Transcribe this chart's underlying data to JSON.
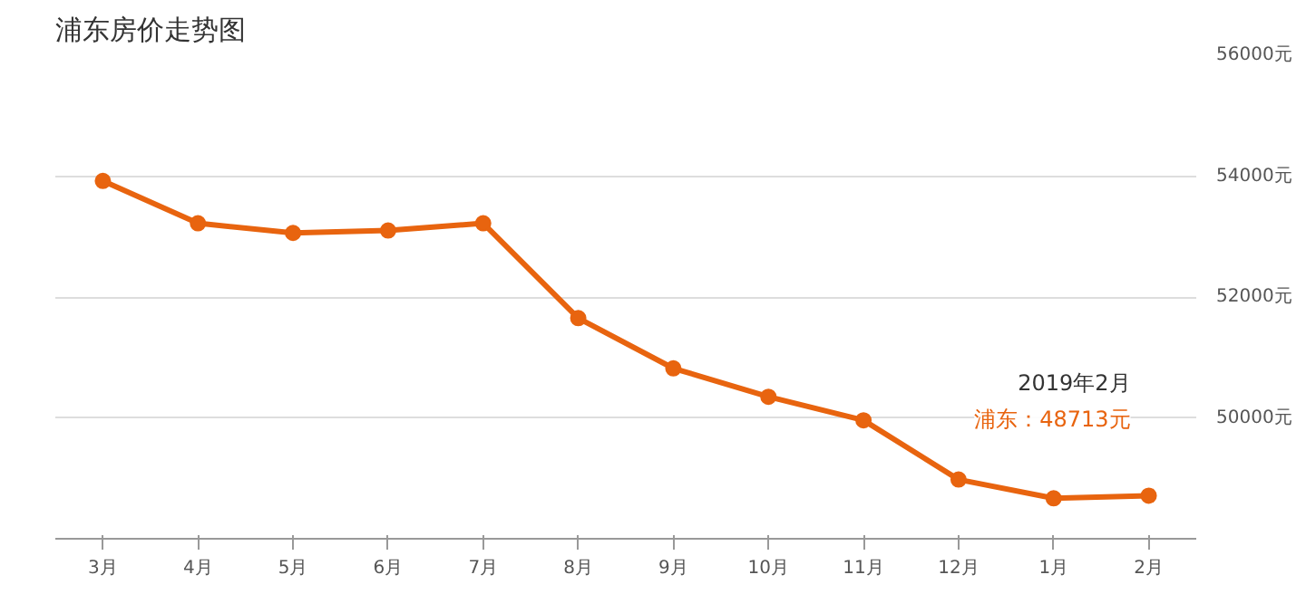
{
  "chart_data": {
    "type": "line",
    "title": "浦东房价走势图",
    "categories": [
      "3月",
      "4月",
      "5月",
      "6月",
      "7月",
      "8月",
      "9月",
      "10月",
      "11月",
      "12月",
      "1月",
      "2月"
    ],
    "series": [
      {
        "color": "#e8640f",
        "values": [
          53920,
          53220,
          53060,
          53100,
          53220,
          51650,
          50820,
          50350,
          49960,
          48980,
          48670,
          48713
        ]
      }
    ],
    "ylim": [
      48000,
      56000
    ],
    "yticks": [
      {
        "value": 48000,
        "label": null
      },
      {
        "value": 50000,
        "label": "50000元"
      },
      {
        "value": 52000,
        "label": "52000元"
      },
      {
        "value": 54000,
        "label": "54000元"
      },
      {
        "value": 56000,
        "label": "56000元"
      }
    ],
    "grid": "y",
    "marker": "circle",
    "line_style": "solid",
    "annotations": [
      "2019年2月",
      "浦东：48713元"
    ]
  }
}
